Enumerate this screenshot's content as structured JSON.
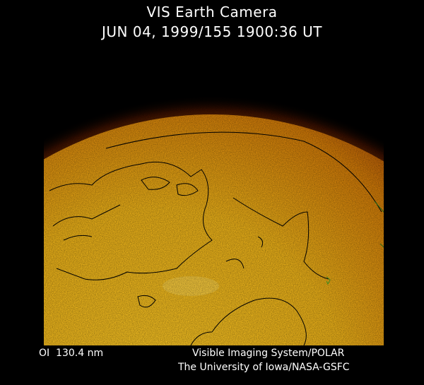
{
  "header": {
    "title": "VIS Earth Camera",
    "timestamp": "JUN 04, 1999/155 1900:36 UT"
  },
  "footer": {
    "band": "OI  130.4 nm",
    "instrument": "Visible Imaging System/POLAR",
    "institution": "The University of Iowa/NASA-GSFC"
  },
  "colors": {
    "background": "#000000",
    "dayglow_bright": "#f5c020",
    "dayglow_mid": "#d07a08",
    "limb_dark": "#6a1a00"
  }
}
